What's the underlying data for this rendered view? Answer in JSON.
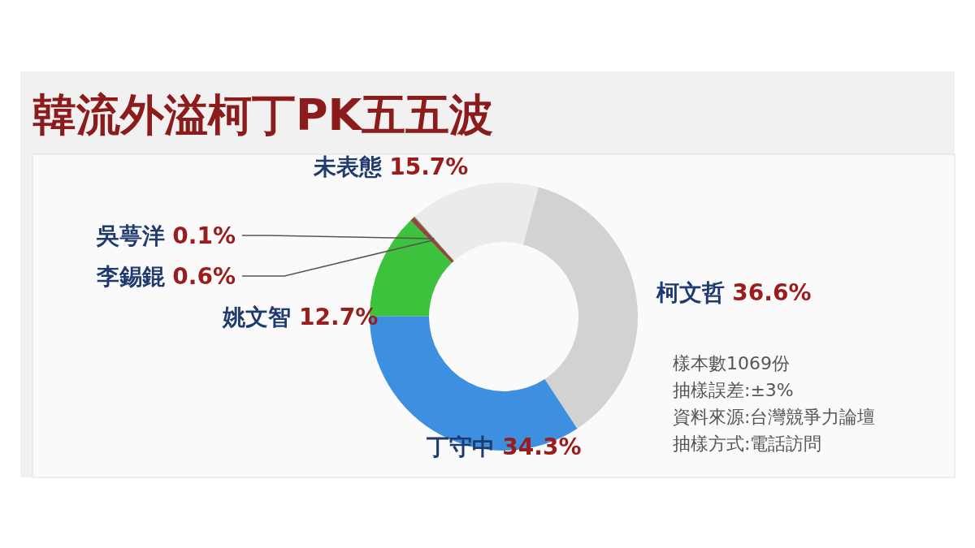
{
  "chart_data": {
    "type": "donut",
    "title": "韓流外溢柯丁PK五五波",
    "categories": [
      "柯文哲",
      "丁守中",
      "姚文智",
      "李錫錕",
      "吳萼洋",
      "未表態"
    ],
    "values": [
      36.6,
      34.3,
      12.7,
      0.6,
      0.1,
      15.7
    ],
    "colors": [
      "#d2d2d2",
      "#3d8fe0",
      "#3cc23c",
      "#8b4a3a",
      "#9a9a9a",
      "#ebebeb"
    ],
    "value_labels": [
      "36.6%",
      "34.3%",
      "12.7%",
      "0.6%",
      "0.1%",
      "15.7%"
    ],
    "annotations": [
      "樣本數1069份",
      "抽樣誤差:±3%",
      "資料來源:台灣競爭力論壇",
      "抽樣方式:電話訪問"
    ]
  }
}
